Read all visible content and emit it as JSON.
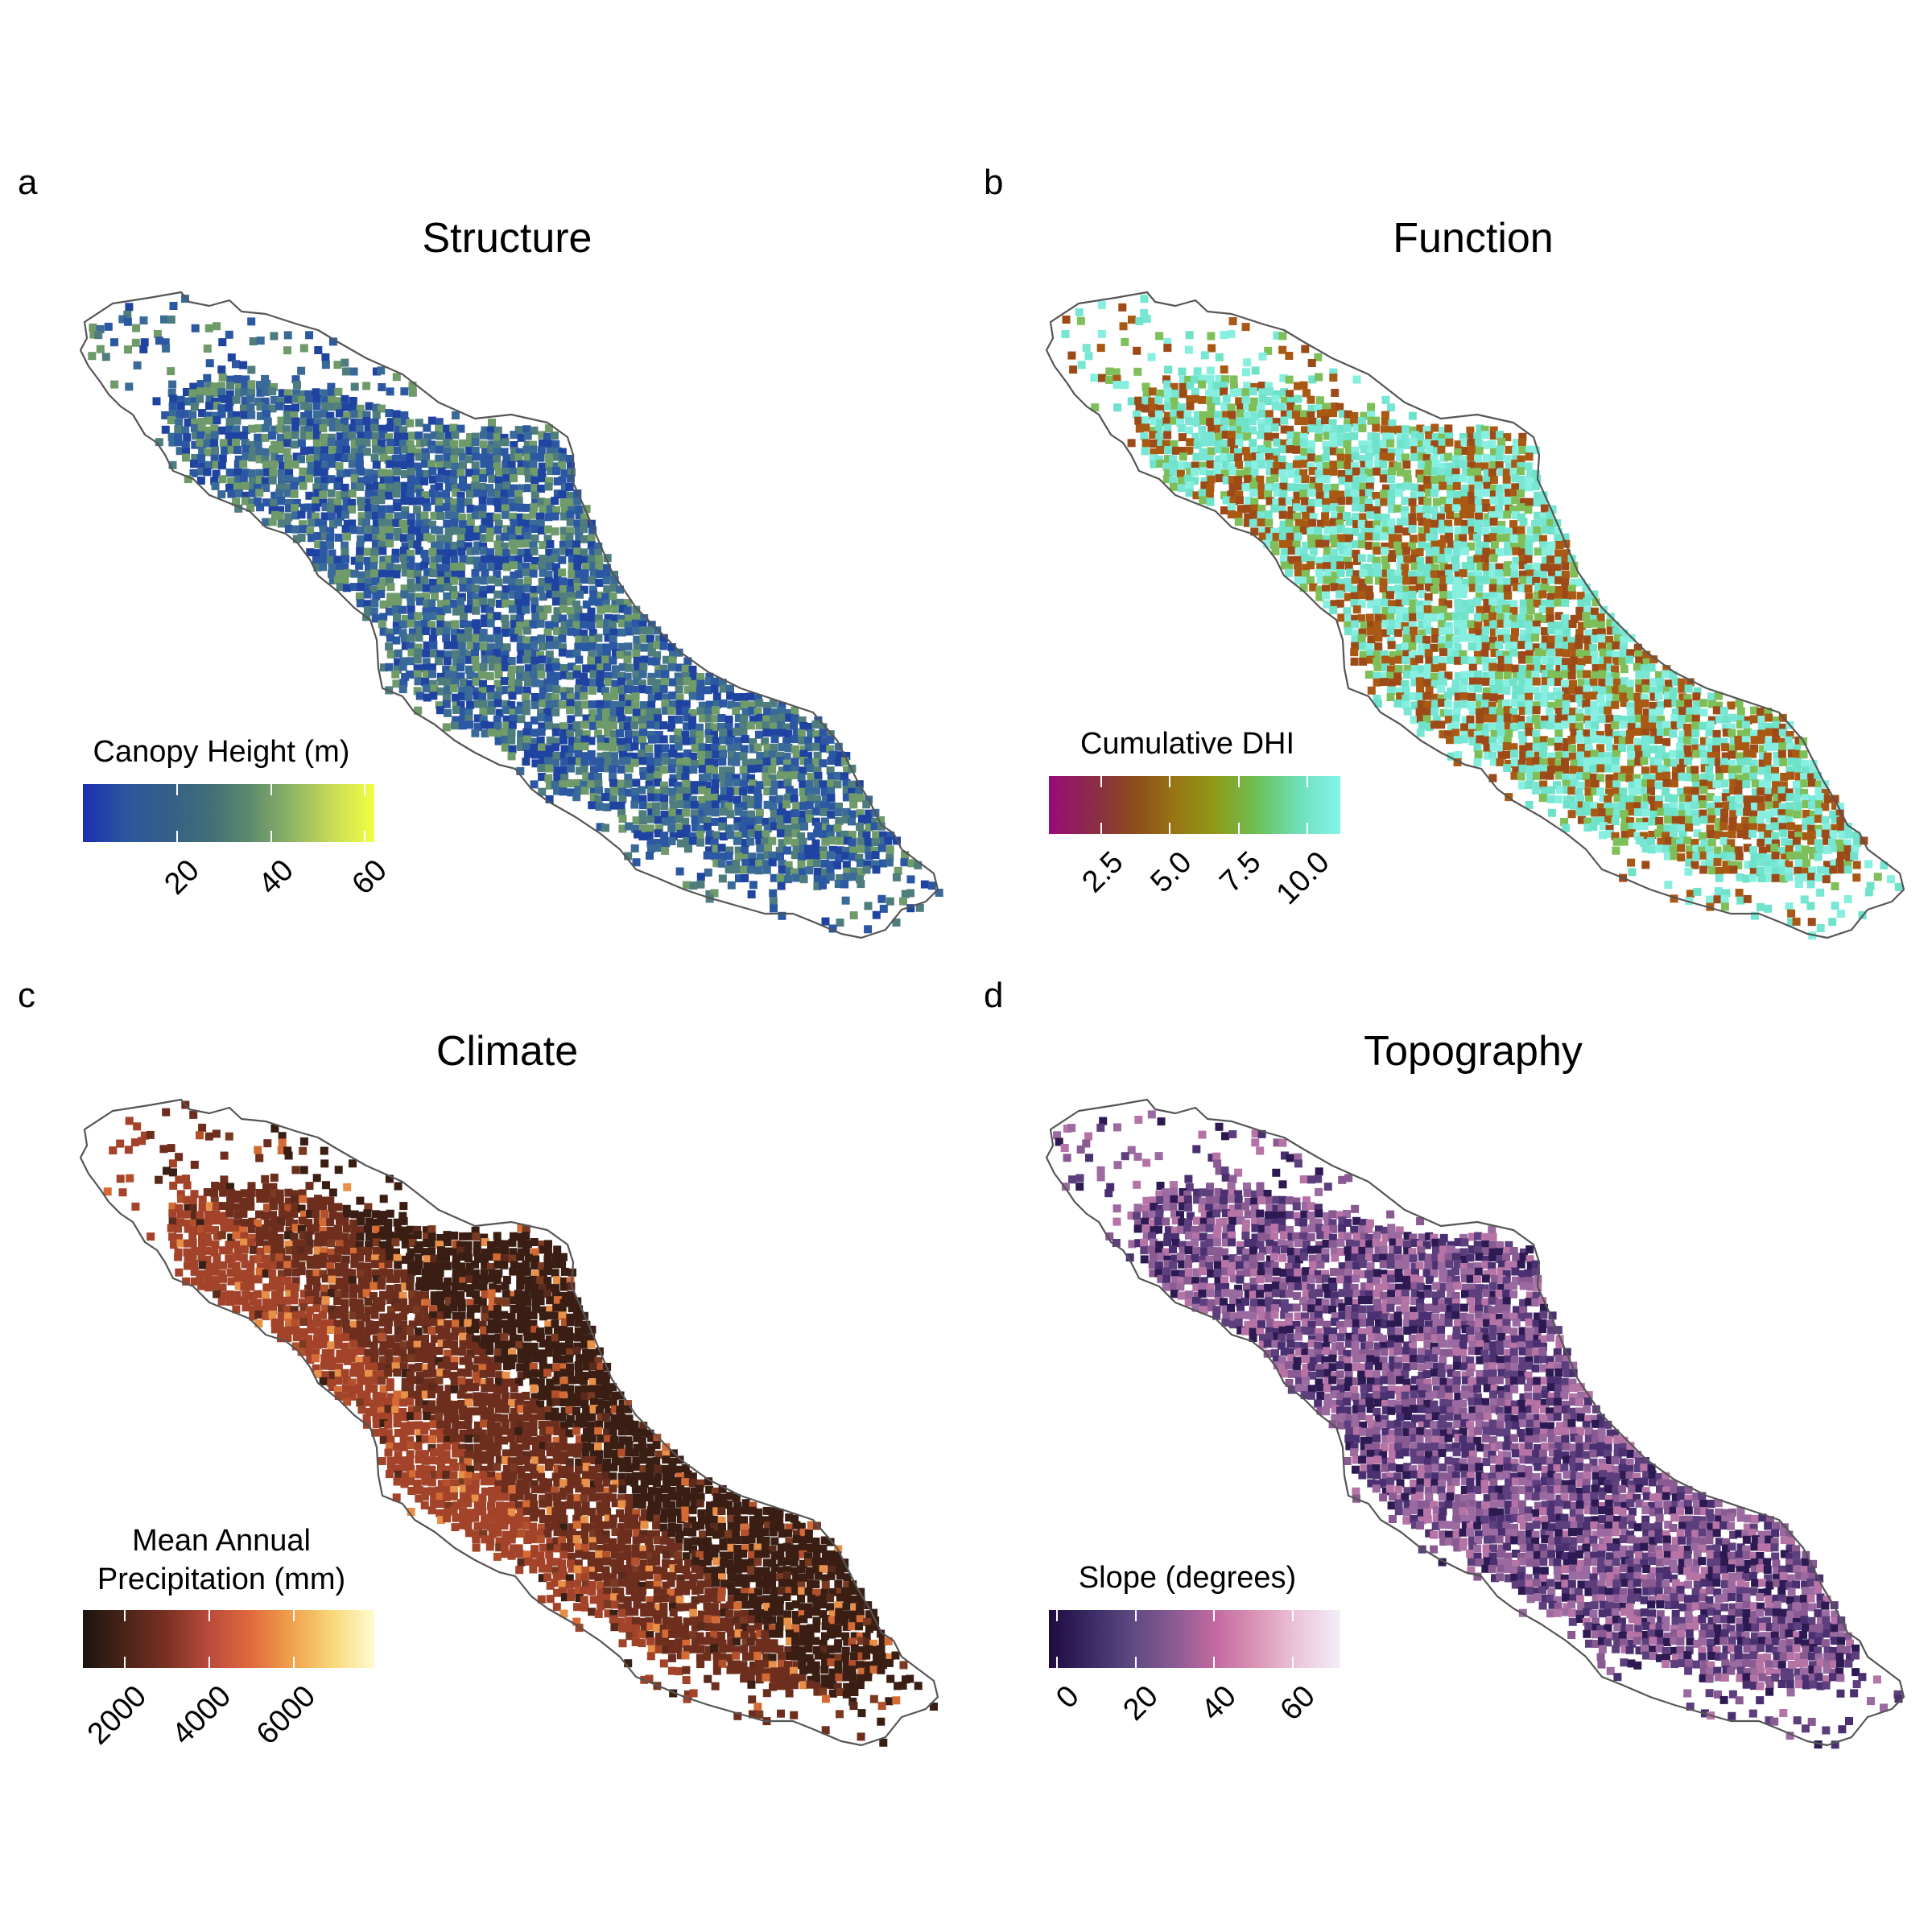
{
  "panels": [
    {
      "letter": "a",
      "title": "Structure",
      "legend": {
        "title_lines": [
          "Canopy Height (m)"
        ],
        "ticks": [
          "20",
          "40",
          "60"
        ],
        "tick_values": [
          20,
          40,
          60
        ],
        "min": 0,
        "max": 62,
        "colors": [
          "#1b2fb0",
          "#2a55a0",
          "#355f88",
          "#3f6d7a",
          "#5c8a6e",
          "#8fb463",
          "#c8dc55",
          "#f2ff44"
        ]
      },
      "map_colors": [
        "#2b57a3",
        "#3a6a98",
        "#1f43a0",
        "#4f7d7d",
        "#6f9a6a"
      ],
      "map_density": 0.9
    },
    {
      "letter": "b",
      "title": "Function",
      "legend": {
        "title_lines": [
          "Cumulative DHI"
        ],
        "ticks": [
          "2.5",
          "5.0",
          "7.5",
          "10.0"
        ],
        "tick_values": [
          2.5,
          5.0,
          7.5,
          10.0
        ],
        "min": 0.6,
        "max": 11.2,
        "colors": [
          "#9a0a78",
          "#8b2a4a",
          "#8c4a1e",
          "#987414",
          "#8f9a18",
          "#6cc056",
          "#6fe0b8",
          "#82f5ee"
        ]
      },
      "map_colors": [
        "#78e6d4",
        "#6fe3c9",
        "#9c4a18",
        "#7fbf5a",
        "#a85a14",
        "#86efe0"
      ],
      "map_density": 0.92
    },
    {
      "letter": "c",
      "title": "Climate",
      "legend": {
        "title_lines": [
          "Mean Annual",
          "Precipitation (mm)"
        ],
        "ticks": [
          "2000",
          "4000",
          "6000"
        ],
        "tick_values": [
          2000,
          4000,
          6000
        ],
        "min": 1000,
        "max": 7900,
        "colors": [
          "#1a1410",
          "#4a2418",
          "#7a3024",
          "#b84a3c",
          "#e0683e",
          "#f0a04c",
          "#f8d878",
          "#fffbd0"
        ]
      },
      "map_colors": [
        "#5a2a1c",
        "#7a3a22",
        "#b3502c",
        "#d46a34",
        "#3a2014",
        "#e89048"
      ],
      "map_density": 0.97
    },
    {
      "letter": "d",
      "title": "Topography",
      "legend": {
        "title_lines": [
          "Slope (degrees)"
        ],
        "ticks": [
          "0",
          "20",
          "40",
          "60"
        ],
        "tick_values": [
          0,
          20,
          40,
          60
        ],
        "min": -2,
        "max": 72,
        "colors": [
          "#1e0b3e",
          "#3a2a66",
          "#5e4a82",
          "#8a5a92",
          "#c36aa0",
          "#dc96b6",
          "#ecc6dc",
          "#f2eef8"
        ]
      },
      "map_colors": [
        "#5e3f7e",
        "#4a3070",
        "#8a5a92",
        "#b673a5",
        "#2e1a52",
        "#9a6aa0"
      ],
      "map_density": 0.96
    }
  ]
}
